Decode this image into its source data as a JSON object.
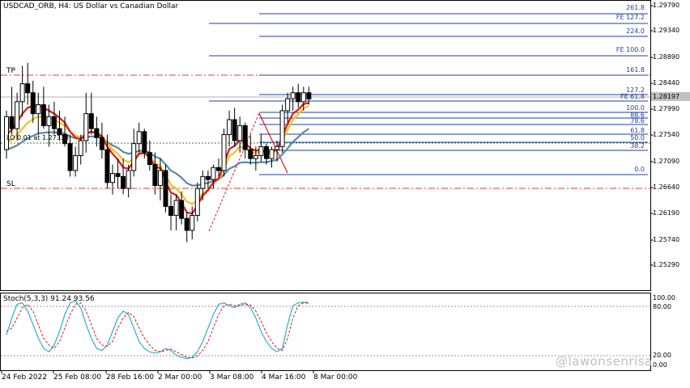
{
  "chart_title": "USDCAD_ORB, H4:  US Dollar vs Canadian Dollar",
  "stoch_label": "Stoch(5,3,3) 91.24 93.56",
  "price_axis": [
    "1.29790",
    "1.29340",
    "1.28890",
    "1.28440",
    "1.27990",
    "1.27540",
    "1.27090",
    "1.26640",
    "1.26190",
    "1.25740",
    "1.25290"
  ],
  "current_price": "1.28197",
  "stoch_axis": [
    "100.00",
    "80.00",
    "20.00",
    "0.00"
  ],
  "time_axis": [
    "24 Feb 2022",
    "25 Feb 08:00",
    "28 Feb 16:00",
    "2 Mar 00:00",
    "3 Mar 08:00",
    "4 Mar 16:00",
    "8 Mar 00:00"
  ],
  "annotations": {
    "tp": "TP",
    "sl": "SL",
    "lot": "LO 0.01 at 1.27333"
  },
  "fib_levels": [
    "261.8",
    "FE 127.2",
    "224.0",
    "FE 100.0",
    "161.8",
    "127.2",
    "FE 61.8",
    "100.0",
    "88.6",
    "78.6",
    "61.8",
    "50.0",
    "38.2",
    "0.0"
  ],
  "watermark": "@lawonsenrisa",
  "colors": {
    "bull": "#ffffff",
    "bear": "#000000",
    "ema_fast": "#e0161a",
    "ema_mid": "#f0c419",
    "ema_slow": "#5a8aa6",
    "fib": "#1f3f9f",
    "stoch_main": "#2bb0c8",
    "stoch_signal": "#e0161a",
    "sl_tp": "#e53b2c"
  },
  "chart_data": {
    "type": "candlestick",
    "title": "USDCAD_ORB, H4:  US Dollar vs Canadian Dollar",
    "ohlc": [
      {
        "o": 1.2735,
        "h": 1.28,
        "l": 1.272,
        "c": 1.279
      },
      {
        "o": 1.279,
        "h": 1.284,
        "l": 1.276,
        "c": 1.277
      },
      {
        "o": 1.277,
        "h": 1.283,
        "l": 1.275,
        "c": 1.2815
      },
      {
        "o": 1.2815,
        "h": 1.2875,
        "l": 1.279,
        "c": 1.2845
      },
      {
        "o": 1.2845,
        "h": 1.288,
        "l": 1.281,
        "c": 1.283
      },
      {
        "o": 1.283,
        "h": 1.285,
        "l": 1.278,
        "c": 1.2795
      },
      {
        "o": 1.2795,
        "h": 1.283,
        "l": 1.276,
        "c": 1.281
      },
      {
        "o": 1.281,
        "h": 1.284,
        "l": 1.277,
        "c": 1.2775
      },
      {
        "o": 1.2775,
        "h": 1.281,
        "l": 1.274,
        "c": 1.279
      },
      {
        "o": 1.279,
        "h": 1.2815,
        "l": 1.276,
        "c": 1.277
      },
      {
        "o": 1.277,
        "h": 1.28,
        "l": 1.275,
        "c": 1.276
      },
      {
        "o": 1.276,
        "h": 1.279,
        "l": 1.274,
        "c": 1.2745
      },
      {
        "o": 1.2745,
        "h": 1.276,
        "l": 1.269,
        "c": 1.27
      },
      {
        "o": 1.27,
        "h": 1.274,
        "l": 1.269,
        "c": 1.2725
      },
      {
        "o": 1.2725,
        "h": 1.276,
        "l": 1.271,
        "c": 1.275
      },
      {
        "o": 1.275,
        "h": 1.283,
        "l": 1.273,
        "c": 1.2795
      },
      {
        "o": 1.2795,
        "h": 1.283,
        "l": 1.276,
        "c": 1.277
      },
      {
        "o": 1.277,
        "h": 1.279,
        "l": 1.274,
        "c": 1.2755
      },
      {
        "o": 1.2755,
        "h": 1.278,
        "l": 1.272,
        "c": 1.2735
      },
      {
        "o": 1.2735,
        "h": 1.276,
        "l": 1.267,
        "c": 1.268
      },
      {
        "o": 1.268,
        "h": 1.271,
        "l": 1.266,
        "c": 1.2695
      },
      {
        "o": 1.2695,
        "h": 1.272,
        "l": 1.267,
        "c": 1.269
      },
      {
        "o": 1.269,
        "h": 1.272,
        "l": 1.266,
        "c": 1.267
      },
      {
        "o": 1.267,
        "h": 1.271,
        "l": 1.2655,
        "c": 1.27
      },
      {
        "o": 1.27,
        "h": 1.277,
        "l": 1.269,
        "c": 1.2745
      },
      {
        "o": 1.2745,
        "h": 1.278,
        "l": 1.273,
        "c": 1.2765
      },
      {
        "o": 1.2765,
        "h": 1.277,
        "l": 1.272,
        "c": 1.273
      },
      {
        "o": 1.273,
        "h": 1.275,
        "l": 1.27,
        "c": 1.271
      },
      {
        "o": 1.271,
        "h": 1.273,
        "l": 1.266,
        "c": 1.2675
      },
      {
        "o": 1.2675,
        "h": 1.272,
        "l": 1.265,
        "c": 1.27
      },
      {
        "o": 1.27,
        "h": 1.271,
        "l": 1.263,
        "c": 1.264
      },
      {
        "o": 1.264,
        "h": 1.266,
        "l": 1.26,
        "c": 1.2625
      },
      {
        "o": 1.2625,
        "h": 1.266,
        "l": 1.26,
        "c": 1.265
      },
      {
        "o": 1.265,
        "h": 1.2665,
        "l": 1.261,
        "c": 1.262
      },
      {
        "o": 1.262,
        "h": 1.263,
        "l": 1.258,
        "c": 1.26
      },
      {
        "o": 1.26,
        "h": 1.264,
        "l": 1.2585,
        "c": 1.2625
      },
      {
        "o": 1.2625,
        "h": 1.268,
        "l": 1.2615,
        "c": 1.267
      },
      {
        "o": 1.267,
        "h": 1.27,
        "l": 1.265,
        "c": 1.269
      },
      {
        "o": 1.269,
        "h": 1.27,
        "l": 1.267,
        "c": 1.2685
      },
      {
        "o": 1.2685,
        "h": 1.271,
        "l": 1.267,
        "c": 1.2705
      },
      {
        "o": 1.2705,
        "h": 1.272,
        "l": 1.269,
        "c": 1.27
      },
      {
        "o": 1.27,
        "h": 1.277,
        "l": 1.269,
        "c": 1.276
      },
      {
        "o": 1.276,
        "h": 1.28,
        "l": 1.274,
        "c": 1.2785
      },
      {
        "o": 1.2785,
        "h": 1.2805,
        "l": 1.274,
        "c": 1.275
      },
      {
        "o": 1.275,
        "h": 1.279,
        "l": 1.273,
        "c": 1.2775
      },
      {
        "o": 1.2775,
        "h": 1.278,
        "l": 1.272,
        "c": 1.2735
      },
      {
        "o": 1.2735,
        "h": 1.276,
        "l": 1.271,
        "c": 1.272
      },
      {
        "o": 1.272,
        "h": 1.274,
        "l": 1.27,
        "c": 1.2725
      },
      {
        "o": 1.2725,
        "h": 1.276,
        "l": 1.2715,
        "c": 1.274
      },
      {
        "o": 1.274,
        "h": 1.2745,
        "l": 1.271,
        "c": 1.272
      },
      {
        "o": 1.272,
        "h": 1.274,
        "l": 1.2705,
        "c": 1.2735
      },
      {
        "o": 1.2735,
        "h": 1.275,
        "l": 1.2715,
        "c": 1.274
      },
      {
        "o": 1.274,
        "h": 1.281,
        "l": 1.273,
        "c": 1.28
      },
      {
        "o": 1.28,
        "h": 1.283,
        "l": 1.278,
        "c": 1.282
      },
      {
        "o": 1.282,
        "h": 1.284,
        "l": 1.28,
        "c": 1.283
      },
      {
        "o": 1.283,
        "h": 1.2845,
        "l": 1.2805,
        "c": 1.2815
      },
      {
        "o": 1.2815,
        "h": 1.284,
        "l": 1.28,
        "c": 1.283
      },
      {
        "o": 1.283,
        "h": 1.284,
        "l": 1.281,
        "c": 1.28197
      }
    ],
    "stoch_main": [
      45,
      70,
      90,
      92,
      80,
      60,
      40,
      25,
      20,
      30,
      50,
      75,
      92,
      95,
      85,
      60,
      40,
      25,
      22,
      30,
      50,
      70,
      80,
      75,
      55,
      35,
      25,
      20,
      18,
      20,
      25,
      22,
      15,
      12,
      10,
      12,
      20,
      35,
      55,
      75,
      90,
      92,
      88,
      85,
      90,
      92,
      85,
      70,
      50,
      35,
      25,
      20,
      25,
      60,
      88,
      92,
      93,
      91
    ],
    "stoch_signal": [
      50,
      55,
      70,
      85,
      90,
      80,
      60,
      40,
      30,
      25,
      35,
      55,
      75,
      90,
      92,
      80,
      60,
      40,
      30,
      28,
      35,
      55,
      70,
      78,
      72,
      55,
      40,
      30,
      22,
      20,
      22,
      24,
      20,
      16,
      12,
      11,
      14,
      22,
      35,
      55,
      75,
      88,
      90,
      88,
      88,
      90,
      89,
      80,
      65,
      48,
      35,
      25,
      22,
      40,
      70,
      88,
      92,
      93.56
    ],
    "ema_fast": [
      1.276,
      1.2768,
      1.278,
      1.2795,
      1.2805,
      1.2808,
      1.2809,
      1.2805,
      1.28,
      1.2795,
      1.2788,
      1.278,
      1.2765,
      1.2755,
      1.2752,
      1.2762,
      1.2765,
      1.2763,
      1.2757,
      1.274,
      1.2728,
      1.2718,
      1.2705,
      1.2703,
      1.2715,
      1.2728,
      1.2729,
      1.2722,
      1.2706,
      1.2704,
      1.2682,
      1.2663,
      1.2659,
      1.2646,
      1.263,
      1.2628,
      1.2642,
      1.2658,
      1.2667,
      1.268,
      1.2687,
      1.2711,
      1.2736,
      1.2741,
      1.2752,
      1.2746,
      1.2737,
      1.2733,
      1.2735,
      1.273,
      1.2732,
      1.2735,
      1.2757,
      1.2778,
      1.2795,
      1.2802,
      1.2811,
      1.2813
    ],
    "ema_mid": [
      1.2745,
      1.2752,
      1.276,
      1.277,
      1.278,
      1.2786,
      1.279,
      1.279,
      1.2788,
      1.2785,
      1.278,
      1.2775,
      1.2765,
      1.2758,
      1.2756,
      1.2762,
      1.2764,
      1.2763,
      1.2758,
      1.2745,
      1.2735,
      1.2728,
      1.2718,
      1.2714,
      1.272,
      1.273,
      1.273,
      1.2725,
      1.2712,
      1.2708,
      1.2692,
      1.2676,
      1.267,
      1.266,
      1.2648,
      1.2644,
      1.265,
      1.2662,
      1.2669,
      1.2679,
      1.2685,
      1.2703,
      1.2724,
      1.273,
      1.274,
      1.2737,
      1.2731,
      1.2729,
      1.2731,
      1.2728,
      1.273,
      1.2733,
      1.275,
      1.2768,
      1.2785,
      1.2794,
      1.2804,
      1.2808
    ],
    "ema_slow": [
      1.2735,
      1.2738,
      1.2742,
      1.2748,
      1.2754,
      1.2758,
      1.2762,
      1.2763,
      1.2764,
      1.2764,
      1.2763,
      1.2762,
      1.2757,
      1.2754,
      1.2753,
      1.2756,
      1.2757,
      1.2757,
      1.2755,
      1.2748,
      1.2742,
      1.2738,
      1.2731,
      1.2728,
      1.273,
      1.2733,
      1.2733,
      1.273,
      1.2723,
      1.272,
      1.271,
      1.27,
      1.2695,
      1.2688,
      1.2679,
      1.2675,
      1.2675,
      1.2678,
      1.2679,
      1.2683,
      1.2685,
      1.2693,
      1.2703,
      1.2707,
      1.2713,
      1.2714,
      1.2713,
      1.2713,
      1.2714,
      1.2714,
      1.2716,
      1.2718,
      1.2727,
      1.2737,
      1.2748,
      1.2756,
      1.2764,
      1.277
    ],
    "price_ylim": [
      1.25,
      1.2985
    ],
    "stoch_ylim": [
      0,
      100
    ]
  }
}
